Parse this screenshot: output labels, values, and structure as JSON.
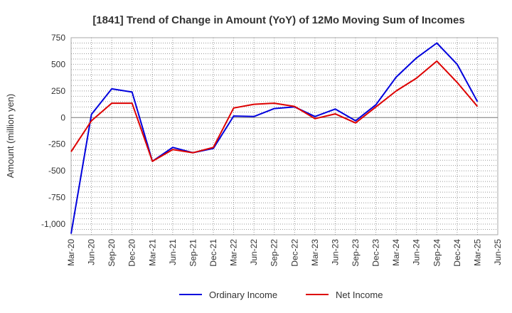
{
  "chart_data": {
    "type": "line",
    "title": "[1841]  Trend of Change in Amount (YoY) of 12Mo Moving Sum of Incomes",
    "xlabel": "",
    "ylabel": "Amount (million yen)",
    "ylim": [
      -1100,
      750
    ],
    "yticks": [
      750,
      500,
      250,
      0,
      -250,
      -500,
      -750,
      -1000
    ],
    "ytick_labels": [
      "750",
      "500",
      "250",
      "0",
      "-250",
      "-500",
      "-750",
      "-1,000"
    ],
    "x": [
      "Mar-20",
      "Jun-20",
      "Sep-20",
      "Dec-20",
      "Mar-21",
      "Jun-21",
      "Sep-21",
      "Dec-21",
      "Mar-22",
      "Jun-22",
      "Sep-22",
      "Dec-22",
      "Mar-23",
      "Jun-23",
      "Sep-23",
      "Dec-23",
      "Mar-24",
      "Jun-24",
      "Sep-24",
      "Dec-24",
      "Mar-25",
      "Jun-25"
    ],
    "grid": true,
    "legend": "bottom",
    "series": [
      {
        "name": "Ordinary Income",
        "color": "#0000dd",
        "values": [
          -1090,
          30,
          270,
          240,
          -410,
          -280,
          -330,
          -290,
          15,
          10,
          85,
          100,
          10,
          80,
          -30,
          120,
          380,
          560,
          700,
          500,
          150,
          null
        ]
      },
      {
        "name": "Net Income",
        "color": "#dd0000",
        "values": [
          -320,
          -30,
          135,
          135,
          -410,
          -300,
          -330,
          -280,
          90,
          125,
          135,
          105,
          -10,
          35,
          -50,
          100,
          250,
          370,
          530,
          330,
          105,
          null
        ]
      }
    ]
  }
}
